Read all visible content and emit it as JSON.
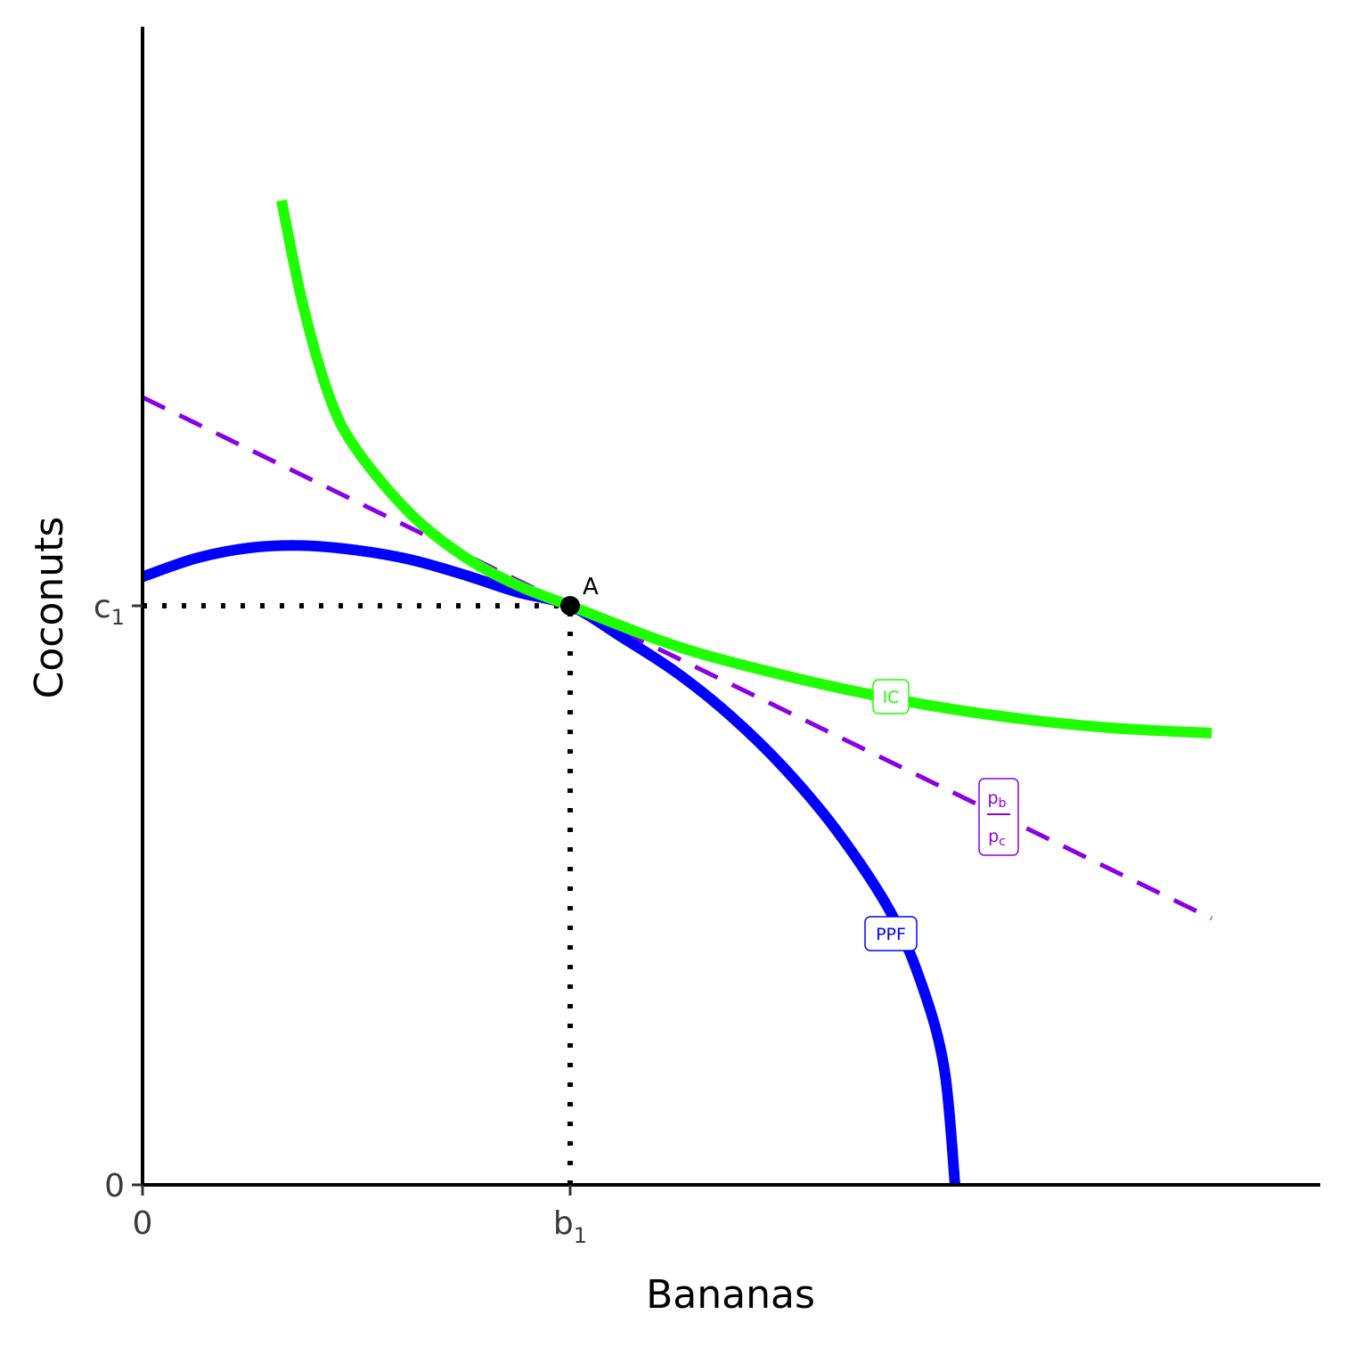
{
  "chart_data": {
    "type": "line",
    "title": "",
    "xlabel": "Bananas",
    "ylabel": "Coconuts",
    "xlim": [
      0,
      10
    ],
    "ylim": [
      0,
      10
    ],
    "grid": false,
    "x_ticks": [
      {
        "value": 0,
        "label": "0",
        "sub": ""
      },
      {
        "value": 4,
        "label": "b",
        "sub": "1"
      }
    ],
    "y_ticks": [
      {
        "value": 0,
        "label": "0",
        "sub": ""
      },
      {
        "value": 5,
        "label": "c",
        "sub": "1"
      }
    ],
    "series": [
      {
        "name": "PPF",
        "color": "#0000ff",
        "style": "solid",
        "points": [
          [
            0,
            5.25
          ],
          [
            0.5,
            5.41
          ],
          [
            1,
            5.5
          ],
          [
            1.5,
            5.52
          ],
          [
            2,
            5.48
          ],
          [
            2.5,
            5.4
          ],
          [
            3,
            5.27
          ],
          [
            3.5,
            5.12
          ],
          [
            4,
            5.0
          ],
          [
            4.5,
            4.72
          ],
          [
            5,
            4.42
          ],
          [
            5.5,
            4.05
          ],
          [
            6,
            3.6
          ],
          [
            6.5,
            3.05
          ],
          [
            7,
            2.35
          ],
          [
            7.3,
            1.7
          ],
          [
            7.5,
            1.0
          ],
          [
            7.6,
            0.0
          ]
        ],
        "label_at": [
          7.0,
          2.15
        ]
      },
      {
        "name": "IC",
        "color": "#1eff00",
        "style": "solid",
        "points": [
          [
            1.3,
            8.5
          ],
          [
            1.5,
            7.6
          ],
          [
            1.75,
            6.8
          ],
          [
            2,
            6.35
          ],
          [
            2.5,
            5.8
          ],
          [
            3,
            5.43
          ],
          [
            3.5,
            5.18
          ],
          [
            4,
            5.0
          ],
          [
            5,
            4.65
          ],
          [
            6,
            4.4
          ],
          [
            7,
            4.2
          ],
          [
            8,
            4.05
          ],
          [
            9,
            3.95
          ],
          [
            10,
            3.9
          ]
        ],
        "label_at": [
          7.0,
          4.2
        ]
      },
      {
        "name": "p_b / p_c",
        "color": "#8a00e6",
        "style": "dashed",
        "points": [
          [
            0,
            6.8
          ],
          [
            10,
            2.3
          ]
        ],
        "label_num": "p",
        "label_num_sub": "b",
        "label_den": "p",
        "label_den_sub": "c",
        "label_at": [
          8.0,
          3.1
        ]
      }
    ],
    "guides": [
      {
        "type": "hline",
        "y": 5,
        "from_x": 0,
        "to_x": 4,
        "style": "dotted"
      },
      {
        "type": "vline",
        "x": 4,
        "from_y": 0,
        "to_y": 5,
        "style": "dotted"
      }
    ],
    "annotations": [
      {
        "type": "point",
        "x": 4,
        "y": 5,
        "label": "A"
      }
    ]
  }
}
